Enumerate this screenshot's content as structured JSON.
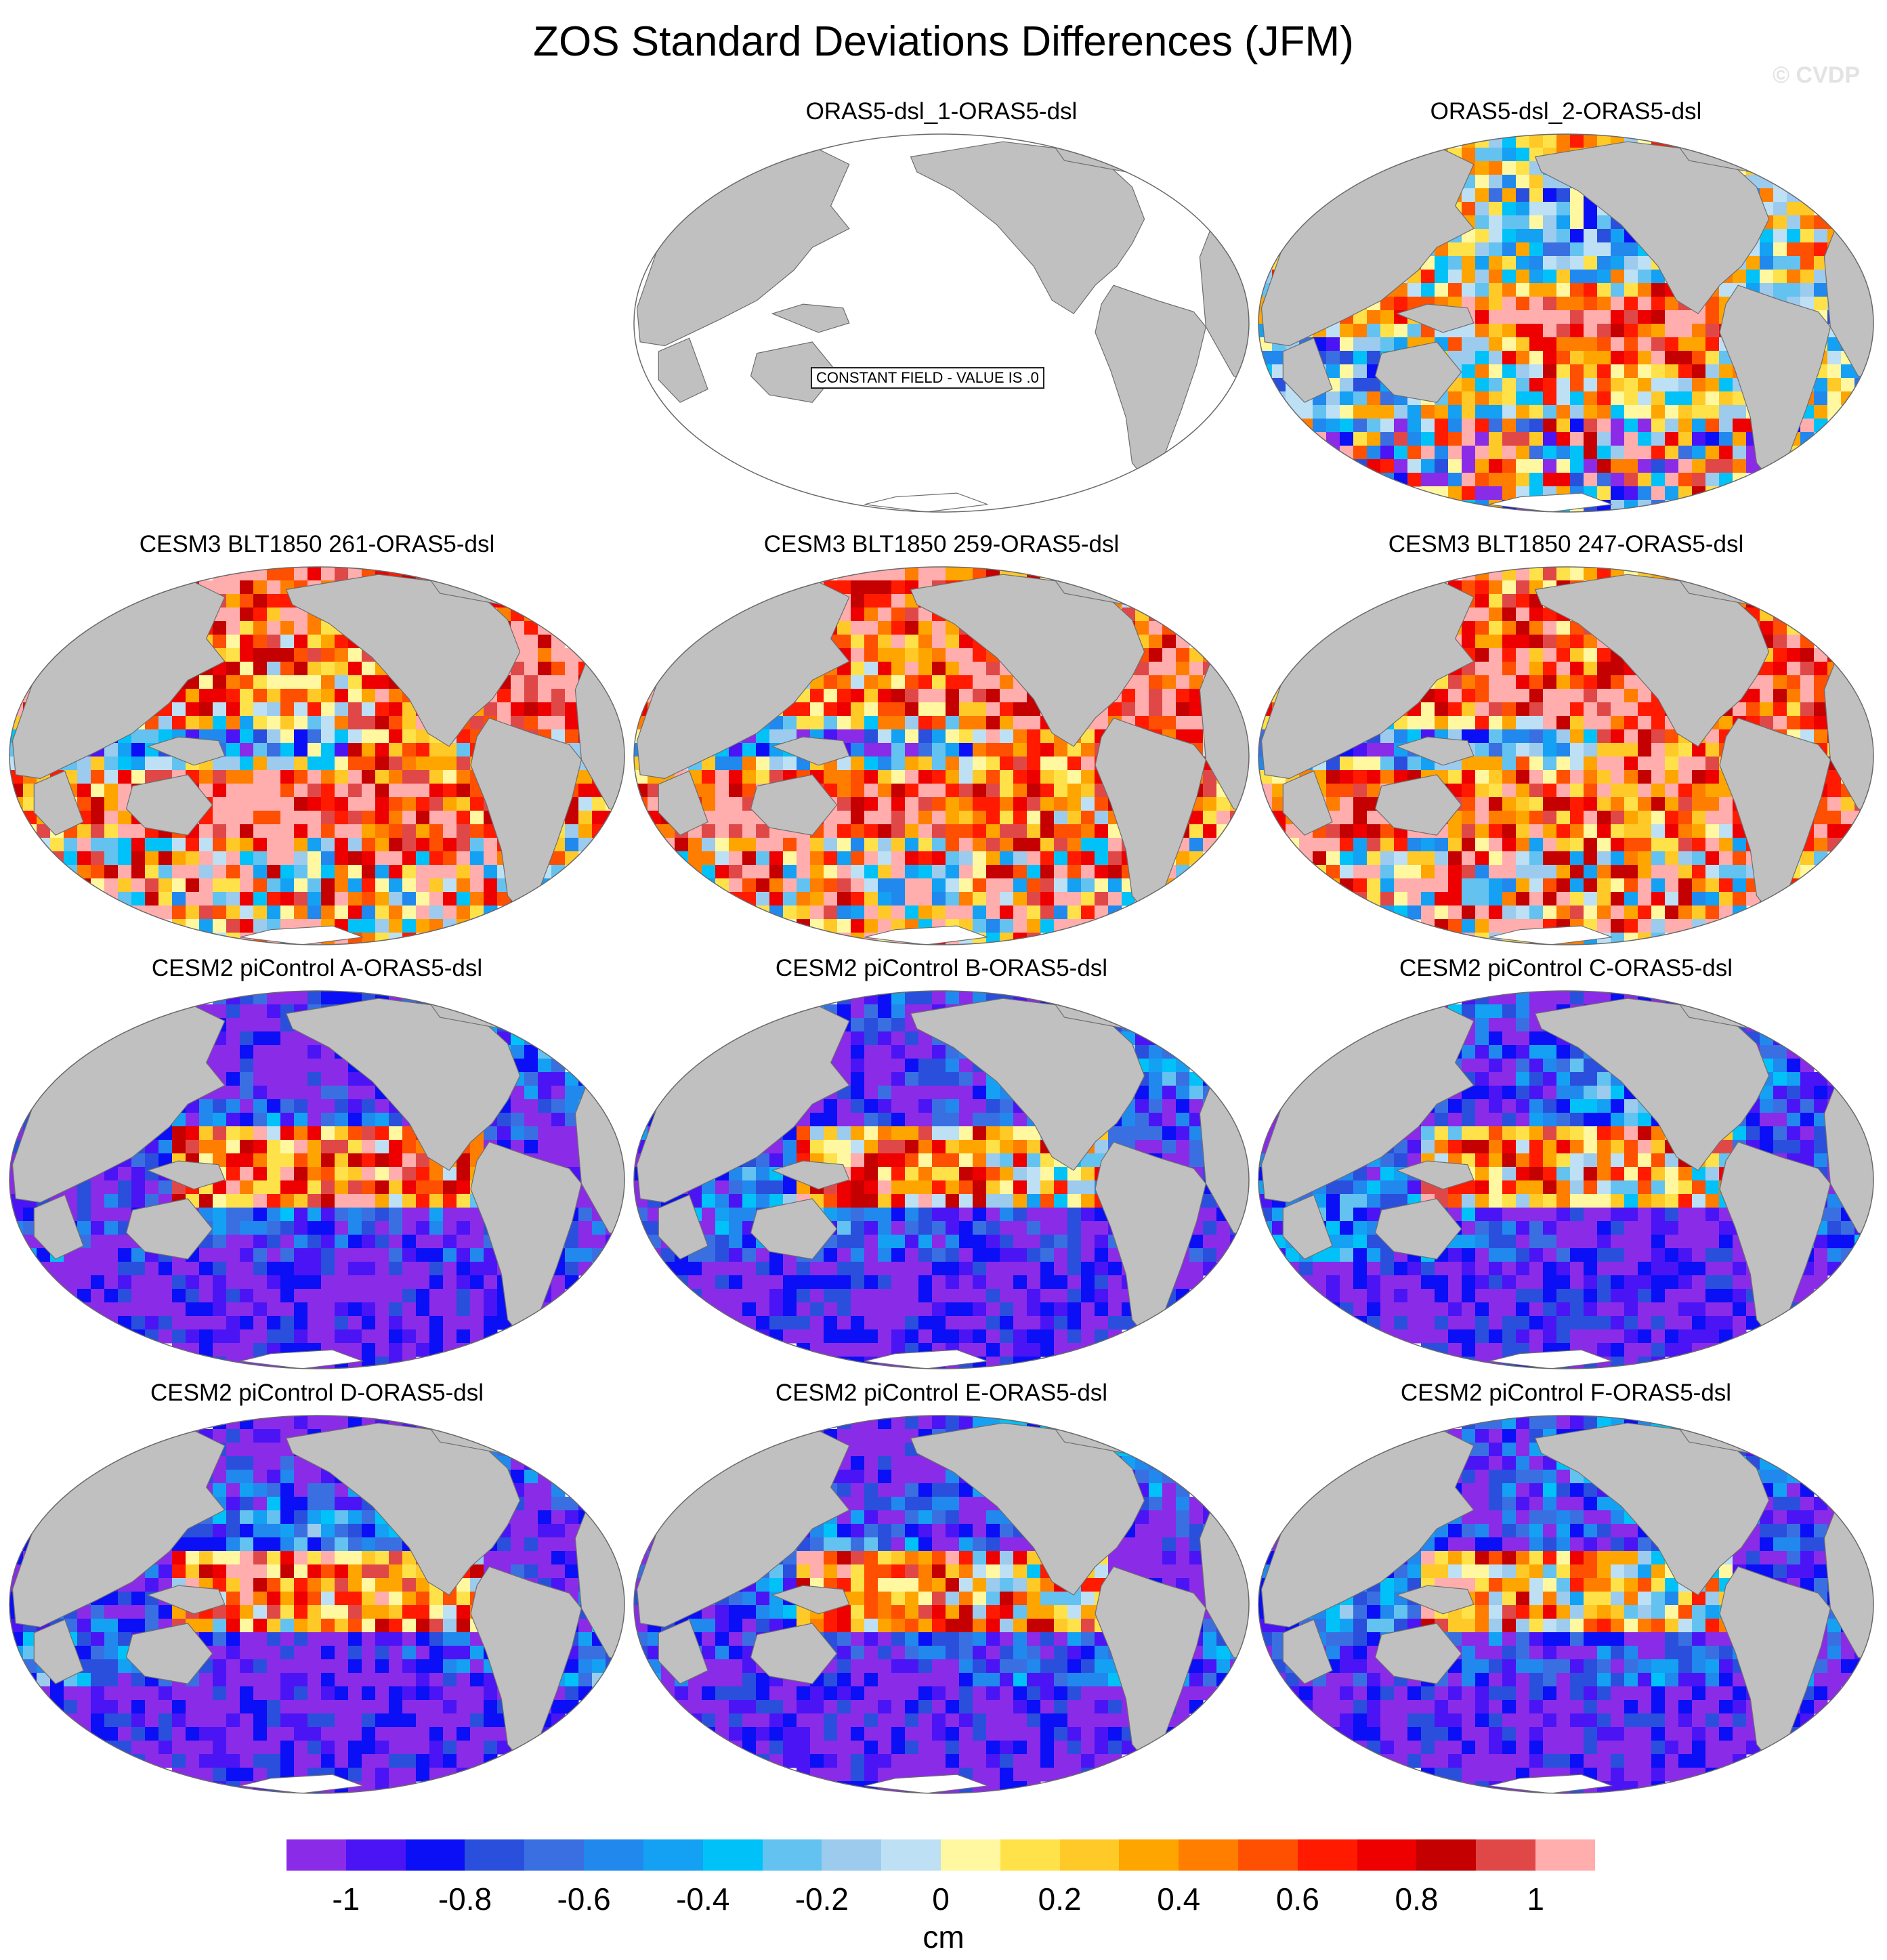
{
  "figure": {
    "title": "ZOS Standard Deviations Differences (JFM)",
    "watermark": "© CVDP",
    "constant_field_label": "CONSTANT FIELD - VALUE IS .0",
    "map_projection": "Robinson, Pacific-centered",
    "land_color": "#c0c0c0"
  },
  "panels": [
    {
      "title": "ORAS5-dsl_1-ORAS5-dsl",
      "constant": true,
      "dominant": "zero"
    },
    {
      "title": "ORAS5-dsl_2-ORAS5-dsl",
      "constant": false,
      "dominant": "mixed"
    },
    {
      "title": "CESM3 BLT1850 261-ORAS5-dsl",
      "constant": false,
      "dominant": "positive"
    },
    {
      "title": "CESM3 BLT1850 259-ORAS5-dsl",
      "constant": false,
      "dominant": "positive"
    },
    {
      "title": "CESM3 BLT1850 247-ORAS5-dsl",
      "constant": false,
      "dominant": "positive"
    },
    {
      "title": "CESM2 piControl A-ORAS5-dsl",
      "constant": false,
      "dominant": "negative"
    },
    {
      "title": "CESM2 piControl B-ORAS5-dsl",
      "constant": false,
      "dominant": "negative"
    },
    {
      "title": "CESM2 piControl C-ORAS5-dsl",
      "constant": false,
      "dominant": "negative"
    },
    {
      "title": "CESM2 piControl D-ORAS5-dsl",
      "constant": false,
      "dominant": "negative"
    },
    {
      "title": "CESM2 piControl E-ORAS5-dsl",
      "constant": false,
      "dominant": "negative"
    },
    {
      "title": "CESM2 piControl F-ORAS5-dsl",
      "constant": false,
      "dominant": "negative"
    }
  ],
  "colorbar": {
    "unit": "cm",
    "tick_labels": [
      "-1",
      "-0.8",
      "-0.6",
      "-0.4",
      "-0.2",
      "0",
      "0.2",
      "0.4",
      "0.6",
      "0.8",
      "1"
    ],
    "colors": [
      "#8a2be8",
      "#4b14f5",
      "#0a0ff5",
      "#2a4fdc",
      "#3a6fe2",
      "#2188ee",
      "#14a1f3",
      "#00c2f8",
      "#63c2f0",
      "#9ccbee",
      "#bde0f5",
      "#fff8a0",
      "#ffe24a",
      "#ffc928",
      "#ffa500",
      "#ff7e00",
      "#ff4f00",
      "#ff1a00",
      "#ee0000",
      "#c40000",
      "#e04848",
      "#ffadad"
    ]
  }
}
